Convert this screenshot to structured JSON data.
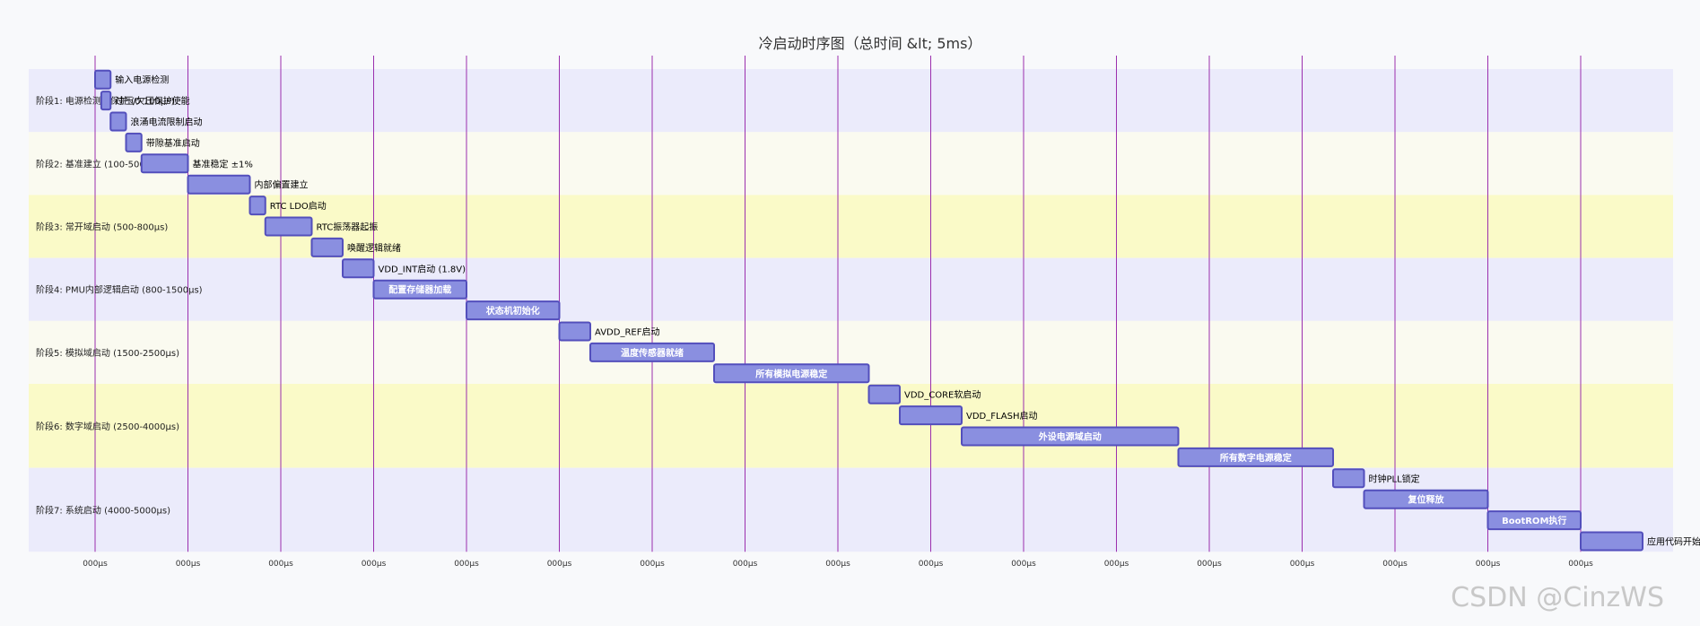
{
  "watermark": "CSDN @CinzWS",
  "chart_data": {
    "type": "gantt",
    "title": "冷启动时序图（总时间 &lt; 5ms）",
    "x_unit": "μs",
    "xlim": [
      -80,
      5200
    ],
    "x_ticks": [
      0,
      300,
      600,
      900,
      1200,
      1500,
      1800,
      2100,
      2400,
      2700,
      3000,
      3300,
      3600,
      3900,
      4200,
      4500,
      4800
    ],
    "tick_label": "000μs",
    "colors": {
      "bar_fill": "#8a8fe0",
      "bar_stroke": "#534fbc",
      "gridline": "#9b2fae",
      "section_even": "#ebebfb",
      "section_mid": "#fafaf0",
      "section_odd": "#fafac8"
    },
    "sections": [
      {
        "label": "阶段1: 电源检测与保护 (0-100μs)",
        "tasks": [
          {
            "name": "输入电源检测",
            "start": 0,
            "end": 50
          },
          {
            "name": "过压/欠压保护使能",
            "start": 20,
            "end": 50
          },
          {
            "name": "浪涌电流限制启动",
            "start": 50,
            "end": 100
          }
        ]
      },
      {
        "label": "阶段2: 基准建立 (100-500μs)",
        "tasks": [
          {
            "name": "带隙基准启动",
            "start": 100,
            "end": 150
          },
          {
            "name": "基准稳定 ±1%",
            "start": 150,
            "end": 300
          },
          {
            "name": "内部偏置建立",
            "start": 300,
            "end": 500
          }
        ]
      },
      {
        "label": "阶段3: 常开域启动 (500-800μs)",
        "tasks": [
          {
            "name": "RTC LDO启动",
            "start": 500,
            "end": 550
          },
          {
            "name": "RTC振荡器起振",
            "start": 550,
            "end": 700
          },
          {
            "name": "唤醒逻辑就绪",
            "start": 700,
            "end": 800
          }
        ]
      },
      {
        "label": "阶段4: PMU内部逻辑启动 (800-1500μs)",
        "tasks": [
          {
            "name": "VDD_INT启动 (1.8V)",
            "start": 800,
            "end": 900
          },
          {
            "name": "配置存储器加载",
            "start": 900,
            "end": 1200
          },
          {
            "name": "状态机初始化",
            "start": 1200,
            "end": 1500
          }
        ]
      },
      {
        "label": "阶段5: 模拟域启动 (1500-2500μs)",
        "tasks": [
          {
            "name": "AVDD_REF启动",
            "start": 1500,
            "end": 1600
          },
          {
            "name": "温度传感器就绪",
            "start": 1600,
            "end": 2000
          },
          {
            "name": "所有模拟电源稳定",
            "start": 2000,
            "end": 2500
          }
        ]
      },
      {
        "label": "阶段6: 数字域启动 (2500-4000μs)",
        "tasks": [
          {
            "name": "VDD_CORE软启动",
            "start": 2500,
            "end": 2600
          },
          {
            "name": "VDD_FLASH启动",
            "start": 2600,
            "end": 2800
          },
          {
            "name": "外设电源域启动",
            "start": 2800,
            "end": 3500
          },
          {
            "name": "所有数字电源稳定",
            "start": 3500,
            "end": 4000
          }
        ]
      },
      {
        "label": "阶段7: 系统启动 (4000-5000μs)",
        "tasks": [
          {
            "name": "时钟PLL锁定",
            "start": 4000,
            "end": 4100
          },
          {
            "name": "复位释放",
            "start": 4100,
            "end": 4500
          },
          {
            "name": "BootROM执行",
            "start": 4500,
            "end": 4800
          },
          {
            "name": "应用代码开始",
            "start": 4800,
            "end": 5000
          }
        ]
      }
    ]
  }
}
